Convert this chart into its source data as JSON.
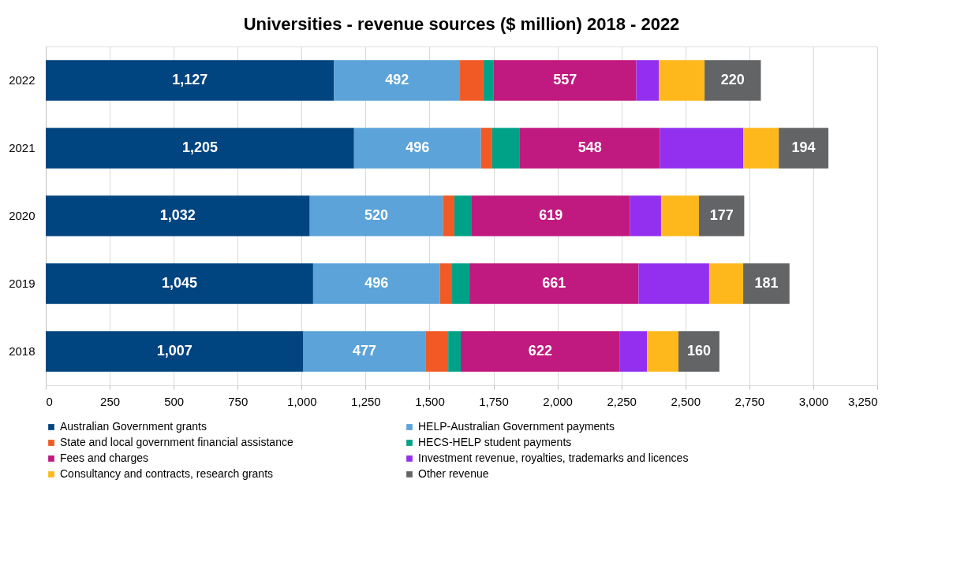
{
  "chart_data": {
    "type": "bar",
    "orientation": "horizontal",
    "stacked": true,
    "title": "Universities - revenue sources ($ million) 2018 - 2022",
    "categories": [
      "2022",
      "2021",
      "2020",
      "2019",
      "2018"
    ],
    "series": [
      {
        "name": "Australian Government grants",
        "color": "#004480",
        "values": [
          1127,
          1205,
          1032,
          1045,
          1007
        ],
        "value_labels": [
          "1,127",
          "1,205",
          "1,032",
          "1,045",
          "1,007"
        ]
      },
      {
        "name": "HELP-Australian Government payments",
        "color": "#5ba3d8",
        "values": [
          492,
          496,
          520,
          496,
          477
        ],
        "value_labels": [
          "492",
          "496",
          "520",
          "496",
          "477"
        ]
      },
      {
        "name": "State and local government financial assistance",
        "color": "#f15a24",
        "values": [
          92,
          44,
          45,
          47,
          89
        ]
      },
      {
        "name": "HECS-HELP student payments",
        "color": "#00a287",
        "values": [
          40,
          108,
          68,
          68,
          49
        ]
      },
      {
        "name": "Fees and charges",
        "color": "#c0197f",
        "values": [
          557,
          548,
          619,
          661,
          622
        ],
        "value_labels": [
          "557",
          "548",
          "619",
          "661",
          "622"
        ]
      },
      {
        "name": "Investment revenue, royalties, trademarks and licences",
        "color": "#9330ef",
        "values": [
          88,
          325,
          121,
          276,
          106
        ]
      },
      {
        "name": "Consultancy and contracts, research grants",
        "color": "#ffb81c",
        "values": [
          179,
          139,
          148,
          133,
          123
        ]
      },
      {
        "name": "Other revenue",
        "color": "#636466",
        "values": [
          220,
          194,
          177,
          181,
          160
        ],
        "value_labels": [
          "220",
          "194",
          "177",
          "181",
          "160"
        ]
      }
    ],
    "xlim": [
      0,
      3250
    ],
    "xticks": [
      0,
      250,
      500,
      750,
      {
        "value": 1000,
        "label": "1,000"
      },
      {
        "value": 1250,
        "label": "1,250"
      },
      {
        "value": 1500,
        "label": "1,500"
      },
      {
        "value": 1750,
        "label": "1,750"
      },
      {
        "value": 2000,
        "label": "2,000"
      },
      {
        "value": 2250,
        "label": "2,250"
      },
      {
        "value": 2500,
        "label": "2,500"
      },
      {
        "value": 2750,
        "label": "2,750"
      },
      {
        "value": 3000,
        "label": "3,000"
      },
      {
        "value": 3250,
        "label": "3,250"
      }
    ],
    "grid": "x",
    "legend": "bottom"
  }
}
